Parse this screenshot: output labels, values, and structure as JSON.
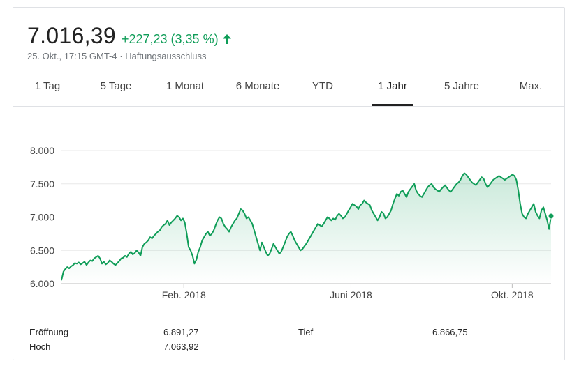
{
  "quote": {
    "price": "7.016,39",
    "change": "+227,23 (3,35 %)",
    "timestamp": "25. Okt., 17:15 GMT-4",
    "separator": " · ",
    "disclaimer": "Haftungsausschluss",
    "arrow_icon": "arrow-up-icon",
    "positive_color": "#0f9d58"
  },
  "tabs": [
    {
      "label": "1 Tag",
      "active": false
    },
    {
      "label": "5 Tage",
      "active": false
    },
    {
      "label": "1 Monat",
      "active": false
    },
    {
      "label": "6 Monate",
      "active": false
    },
    {
      "label": "YTD",
      "active": false
    },
    {
      "label": "1 Jahr",
      "active": true
    },
    {
      "label": "5 Jahre",
      "active": false
    },
    {
      "label": "Max.",
      "active": false
    }
  ],
  "stats": {
    "open_label": "Eröffnung",
    "open_value": "6.891,27",
    "high_label": "Hoch",
    "high_value": "7.063,92",
    "low_label": "Tief",
    "low_value": "6.866,75"
  },
  "chart_data": {
    "type": "area",
    "ylim": [
      6000,
      8000
    ],
    "yticks": [
      "6.000",
      "6.500",
      "7.000",
      "7.500",
      "8.000"
    ],
    "xticks": [
      "Feb. 2018",
      "Juni 2018",
      "Okt. 2018"
    ],
    "x_range": [
      0,
      252
    ],
    "xtick_positions": [
      63,
      149,
      232
    ],
    "grid": true,
    "line_color": "#0f9d58",
    "series": [
      {
        "values": [
          6050,
          6180,
          6220,
          6250,
          6230,
          6260,
          6280,
          6310,
          6300,
          6320,
          6290,
          6310,
          6330,
          6280,
          6320,
          6350,
          6340,
          6380,
          6400,
          6420,
          6380,
          6300,
          6330,
          6290,
          6310,
          6350,
          6330,
          6300,
          6280,
          6310,
          6340,
          6380,
          6390,
          6420,
          6400,
          6450,
          6480,
          6440,
          6460,
          6500,
          6470,
          6420,
          6550,
          6600,
          6620,
          6650,
          6700,
          6680,
          6720,
          6750,
          6780,
          6800,
          6850,
          6880,
          6900,
          6950,
          6880,
          6920,
          6950,
          6980,
          7020,
          7000,
          6950,
          6980,
          6920,
          6750,
          6550,
          6500,
          6420,
          6300,
          6360,
          6480,
          6550,
          6650,
          6700,
          6750,
          6780,
          6720,
          6750,
          6800,
          6880,
          6950,
          7000,
          6980,
          6900,
          6850,
          6820,
          6780,
          6850,
          6900,
          6950,
          6980,
          7050,
          7120,
          7100,
          7050,
          6980,
          7000,
          6950,
          6900,
          6800,
          6700,
          6600,
          6500,
          6620,
          6550,
          6480,
          6420,
          6450,
          6520,
          6600,
          6550,
          6500,
          6450,
          6480,
          6550,
          6620,
          6700,
          6750,
          6780,
          6720,
          6650,
          6600,
          6550,
          6500,
          6520,
          6560,
          6600,
          6650,
          6700,
          6750,
          6800,
          6850,
          6900,
          6880,
          6860,
          6900,
          6950,
          7000,
          6980,
          6950,
          6980,
          6960,
          7020,
          7050,
          7020,
          6980,
          7000,
          7050,
          7100,
          7150,
          7200,
          7180,
          7160,
          7120,
          7180,
          7200,
          7250,
          7220,
          7200,
          7180,
          7100,
          7050,
          7000,
          6950,
          7000,
          7080,
          7060,
          6980,
          7000,
          7050,
          7100,
          7200,
          7280,
          7350,
          7320,
          7380,
          7400,
          7350,
          7300,
          7380,
          7420,
          7460,
          7500,
          7400,
          7350,
          7320,
          7300,
          7350,
          7400,
          7450,
          7480,
          7500,
          7450,
          7420,
          7400,
          7380,
          7420,
          7450,
          7480,
          7440,
          7400,
          7380,
          7420,
          7460,
          7500,
          7520,
          7560,
          7620,
          7660,
          7640,
          7600,
          7560,
          7520,
          7500,
          7480,
          7520,
          7560,
          7600,
          7580,
          7500,
          7450,
          7480,
          7520,
          7560,
          7580,
          7600,
          7620,
          7600,
          7580,
          7560,
          7580,
          7600,
          7620,
          7640,
          7620,
          7560,
          7400,
          7200,
          7050,
          7000,
          6980,
          7050,
          7100,
          7150,
          7200,
          7080,
          7020,
          6980,
          7100,
          7150,
          7050,
          6950,
          6820,
          7016
        ]
      }
    ]
  }
}
